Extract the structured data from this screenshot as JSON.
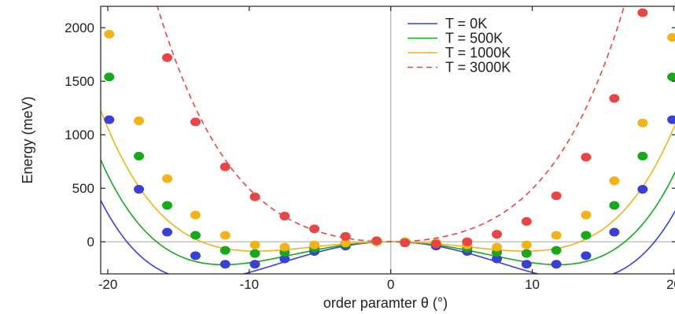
{
  "chart_data": {
    "type": "scatter",
    "xlabel": "order paramter θ (°)",
    "ylabel": "Energy (meV)",
    "xlim": [
      -20.5,
      20.2
    ],
    "ylim": [
      -300,
      2200
    ],
    "x_ticks": [
      -20,
      -10,
      0,
      10,
      20
    ],
    "x_tick_labels": [
      "-20",
      "-10",
      "0",
      "10",
      "20"
    ],
    "y_ticks": [
      0,
      500,
      1000,
      1500,
      2000
    ],
    "y_tick_labels": [
      "0",
      "500",
      "1000",
      "1500",
      "2000"
    ],
    "grid": false,
    "reference_lines": [
      {
        "axis": "x",
        "value": 0
      },
      {
        "axis": "y",
        "value": 0
      }
    ],
    "legend_position": "top-right",
    "series": [
      {
        "name": "T = 0K",
        "color": "#3a3fd6",
        "line_style": "solid",
        "curve_coeffs": {
          "a2": -3.9,
          "a4": 0.01,
          "a6": 3.5e-06
        },
        "points": [
          {
            "x": -19.9,
            "y": 1140
          },
          {
            "x": -17.8,
            "y": 490
          },
          {
            "x": -15.8,
            "y": 90
          },
          {
            "x": -13.8,
            "y": -130
          },
          {
            "x": -11.7,
            "y": -210
          },
          {
            "x": -9.6,
            "y": -210
          },
          {
            "x": -7.5,
            "y": -160
          },
          {
            "x": -5.4,
            "y": -90
          },
          {
            "x": -3.2,
            "y": -40
          },
          {
            "x": -1.0,
            "y": 0
          },
          {
            "x": 1.0,
            "y": 0
          },
          {
            "x": 3.2,
            "y": -40
          },
          {
            "x": 5.4,
            "y": -90
          },
          {
            "x": 7.5,
            "y": -160
          },
          {
            "x": 9.6,
            "y": -210
          },
          {
            "x": 11.7,
            "y": -210
          },
          {
            "x": 13.8,
            "y": -130
          },
          {
            "x": 15.8,
            "y": 90
          },
          {
            "x": 17.8,
            "y": 490
          },
          {
            "x": 19.9,
            "y": 1140
          }
        ]
      },
      {
        "name": "T = 500K",
        "color": "#18a81e",
        "line_style": "solid",
        "curve_coeffs": {
          "a2": -3.0,
          "a4": 0.01,
          "a6": 3.5e-06
        },
        "points": [
          {
            "x": -19.9,
            "y": 1540
          },
          {
            "x": -17.8,
            "y": 800
          },
          {
            "x": -15.8,
            "y": 340
          },
          {
            "x": -13.8,
            "y": 60
          },
          {
            "x": -11.7,
            "y": -80
          },
          {
            "x": -9.6,
            "y": -110
          },
          {
            "x": -7.5,
            "y": -100
          },
          {
            "x": -5.4,
            "y": -60
          },
          {
            "x": -3.2,
            "y": -20
          },
          {
            "x": -1.0,
            "y": 0
          },
          {
            "x": 1.0,
            "y": 0
          },
          {
            "x": 3.2,
            "y": -20
          },
          {
            "x": 5.4,
            "y": -60
          },
          {
            "x": 7.5,
            "y": -100
          },
          {
            "x": 9.6,
            "y": -110
          },
          {
            "x": 11.7,
            "y": -80
          },
          {
            "x": 13.8,
            "y": 60
          },
          {
            "x": 15.8,
            "y": 340
          },
          {
            "x": 17.8,
            "y": 800
          },
          {
            "x": 19.9,
            "y": 1540
          }
        ]
      },
      {
        "name": "T = 1000K",
        "color": "#f2b21a",
        "line_style": "solid",
        "curve_coeffs": {
          "a2": -1.9,
          "a4": 0.01,
          "a6": 3.5e-06
        },
        "points": [
          {
            "x": -19.9,
            "y": 1940
          },
          {
            "x": -17.8,
            "y": 1130
          },
          {
            "x": -15.8,
            "y": 590
          },
          {
            "x": -13.8,
            "y": 250
          },
          {
            "x": -11.7,
            "y": 60
          },
          {
            "x": -9.6,
            "y": -30
          },
          {
            "x": -7.5,
            "y": -50
          },
          {
            "x": -5.4,
            "y": -30
          },
          {
            "x": -3.2,
            "y": -10
          },
          {
            "x": -1.0,
            "y": 0
          },
          {
            "x": 1.0,
            "y": 0
          },
          {
            "x": 3.2,
            "y": -10
          },
          {
            "x": 5.4,
            "y": -30
          },
          {
            "x": 7.5,
            "y": -50
          },
          {
            "x": 9.6,
            "y": -30
          },
          {
            "x": 11.7,
            "y": 60
          },
          {
            "x": 13.8,
            "y": 250
          },
          {
            "x": 15.8,
            "y": 570
          },
          {
            "x": 17.8,
            "y": 1110
          },
          {
            "x": 19.9,
            "y": 1910
          }
        ]
      },
      {
        "name": "T = 3000K",
        "color": "#e84545",
        "line_style": "dashed",
        "curve_coeffs": {
          "a2": 3.2,
          "a4": 0.017,
          "a6": 3.5e-06
        },
        "points": [
          {
            "x": -15.8,
            "y": 1720
          },
          {
            "x": -13.8,
            "y": 1120
          },
          {
            "x": -11.7,
            "y": 700
          },
          {
            "x": -9.6,
            "y": 420
          },
          {
            "x": -7.5,
            "y": 240
          },
          {
            "x": -5.4,
            "y": 120
          },
          {
            "x": -3.2,
            "y": 50
          },
          {
            "x": -1.0,
            "y": 10
          },
          {
            "x": 1.0,
            "y": -10
          },
          {
            "x": 3.2,
            "y": -20
          },
          {
            "x": 5.4,
            "y": 0
          },
          {
            "x": 7.5,
            "y": 70
          },
          {
            "x": 9.6,
            "y": 190
          },
          {
            "x": 11.7,
            "y": 430
          },
          {
            "x": 13.8,
            "y": 790
          },
          {
            "x": 15.8,
            "y": 1340
          },
          {
            "x": 17.8,
            "y": 2140
          }
        ]
      }
    ]
  }
}
